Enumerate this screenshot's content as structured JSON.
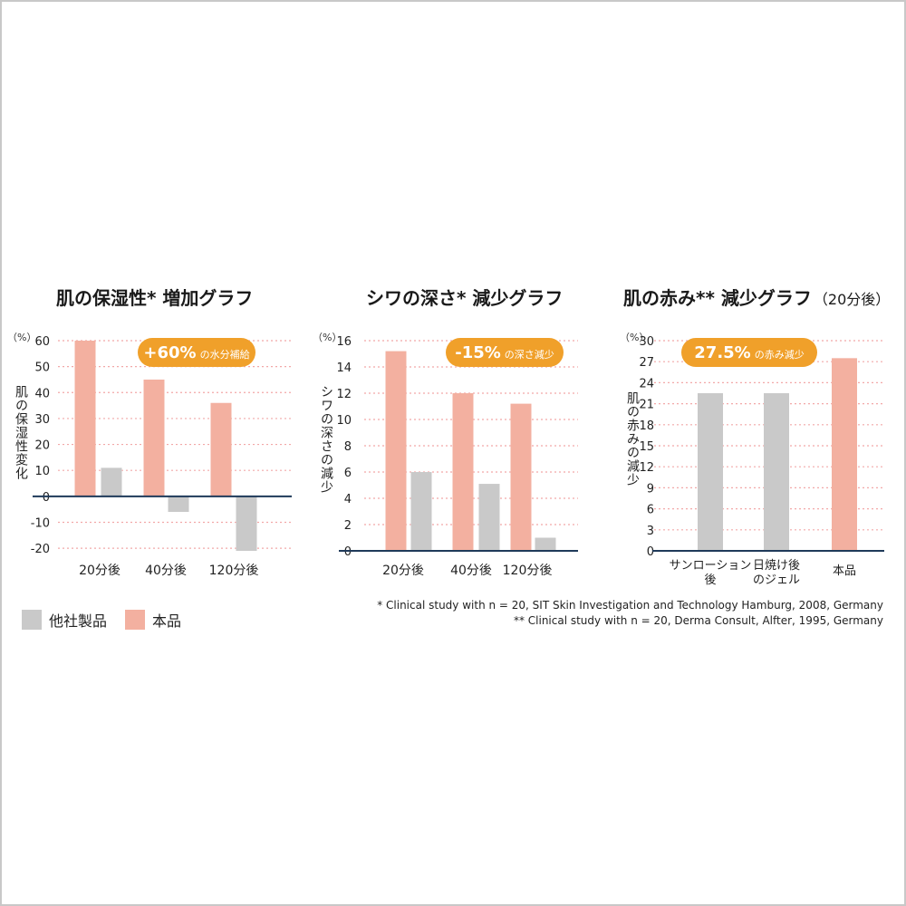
{
  "chart_data": [
    {
      "type": "bar",
      "title": "肌の保湿性* 増加グラフ",
      "unit": "（%）",
      "ylabel": "肌の保湿性変化",
      "categories": [
        "20分後",
        "40分後",
        "120分後"
      ],
      "series": [
        {
          "name": "本品",
          "color": "#f3b0a0",
          "values": [
            60,
            45,
            36
          ]
        },
        {
          "name": "他社製品",
          "color": "#c9c9c9",
          "values": [
            11,
            -6,
            -21
          ]
        }
      ],
      "ylim": [
        -21,
        60
      ],
      "yticks": [
        60,
        50,
        40,
        30,
        20,
        10,
        0,
        -10,
        -20
      ],
      "badge": {
        "big": "+60%",
        "small": "の水分補給"
      },
      "grid": true
    },
    {
      "type": "bar",
      "title": "シワの深さ* 減少グラフ",
      "unit": "（%）",
      "ylabel": "シワの深さの減少",
      "categories": [
        "20分後",
        "40分後",
        "120分後"
      ],
      "series": [
        {
          "name": "本品",
          "color": "#f3b0a0",
          "values": [
            15.2,
            12.0,
            11.2
          ]
        },
        {
          "name": "他社製品",
          "color": "#c9c9c9",
          "values": [
            6.0,
            5.1,
            1.0
          ]
        }
      ],
      "ylim": [
        0,
        16
      ],
      "yticks": [
        16,
        14,
        12,
        10,
        8,
        6,
        4,
        2,
        0
      ],
      "badge": {
        "big": "-15%",
        "small": "の深さ減少"
      },
      "grid": true
    },
    {
      "type": "bar",
      "title": "肌の赤み** 減少グラフ",
      "subtitle": "（20分後）",
      "unit": "（%）",
      "ylabel": "肌の赤みの減少",
      "categories": [
        "サンローション\n後",
        "日焼け後\nのジェル",
        "本品"
      ],
      "series": [
        {
          "name": "",
          "colors": [
            "#c9c9c9",
            "#c9c9c9",
            "#f3b0a0"
          ],
          "values": [
            22.5,
            22.5,
            27.5
          ]
        }
      ],
      "ylim": [
        0,
        30
      ],
      "yticks": [
        30,
        27,
        24,
        21,
        18,
        15,
        12,
        9,
        6,
        3,
        0
      ],
      "badge": {
        "big": "27.5%",
        "small": "の赤み減少"
      },
      "grid": true
    }
  ],
  "legend": {
    "items": [
      {
        "label": "他社製品",
        "color": "#c9c9c9"
      },
      {
        "label": "本品",
        "color": "#f3b0a0"
      }
    ]
  },
  "footnotes": {
    "line1": "* Clinical study with n = 20, SIT Skin Investigation and Technology Hamburg, 2008, Germany",
    "line2": "** Clinical study with n = 20, Derma Consult, Alfter, 1995, Germany"
  },
  "colors": {
    "axis": "#1f3a5a",
    "grid": "#f2a8a8",
    "badge": "#f0a02a",
    "badge_text": "#ffffff"
  }
}
